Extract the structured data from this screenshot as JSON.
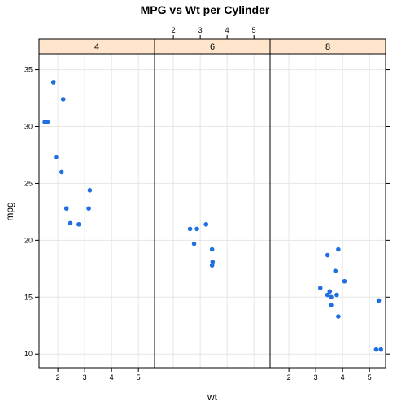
{
  "chart_data": {
    "type": "scatter",
    "title": "MPG vs Wt per Cylinder",
    "xlabel": "wt",
    "ylabel": "mpg",
    "xlim": [
      1.3,
      5.6
    ],
    "ylim": [
      8.8,
      36.4
    ],
    "xticks": [
      2,
      3,
      4,
      5
    ],
    "yticks": [
      10,
      15,
      20,
      25,
      30,
      35
    ],
    "grid": true,
    "panels": [
      {
        "label": "4",
        "points": [
          {
            "x": 1.615,
            "y": 30.4
          },
          {
            "x": 1.513,
            "y": 30.4
          },
          {
            "x": 1.835,
            "y": 33.9
          },
          {
            "x": 2.2,
            "y": 32.4
          },
          {
            "x": 1.935,
            "y": 27.3
          },
          {
            "x": 2.14,
            "y": 26.0
          },
          {
            "x": 3.19,
            "y": 24.4
          },
          {
            "x": 2.32,
            "y": 22.8
          },
          {
            "x": 3.15,
            "y": 22.8
          },
          {
            "x": 2.465,
            "y": 21.5
          },
          {
            "x": 2.78,
            "y": 21.4
          }
        ]
      },
      {
        "label": "6",
        "points": [
          {
            "x": 2.62,
            "y": 21.0
          },
          {
            "x": 2.875,
            "y": 21.0
          },
          {
            "x": 3.215,
            "y": 21.4
          },
          {
            "x": 2.77,
            "y": 19.7
          },
          {
            "x": 3.44,
            "y": 19.2
          },
          {
            "x": 3.46,
            "y": 18.1
          },
          {
            "x": 3.44,
            "y": 17.8
          }
        ]
      },
      {
        "label": "8",
        "points": [
          {
            "x": 3.44,
            "y": 18.7
          },
          {
            "x": 3.84,
            "y": 19.2
          },
          {
            "x": 3.73,
            "y": 17.3
          },
          {
            "x": 4.07,
            "y": 16.4
          },
          {
            "x": 3.17,
            "y": 15.8
          },
          {
            "x": 3.52,
            "y": 15.5
          },
          {
            "x": 3.435,
            "y": 15.2
          },
          {
            "x": 3.78,
            "y": 15.2
          },
          {
            "x": 3.57,
            "y": 15.0
          },
          {
            "x": 3.57,
            "y": 14.3
          },
          {
            "x": 5.345,
            "y": 14.7
          },
          {
            "x": 3.84,
            "y": 13.3
          },
          {
            "x": 5.25,
            "y": 10.4
          },
          {
            "x": 5.424,
            "y": 10.4
          }
        ]
      }
    ]
  }
}
